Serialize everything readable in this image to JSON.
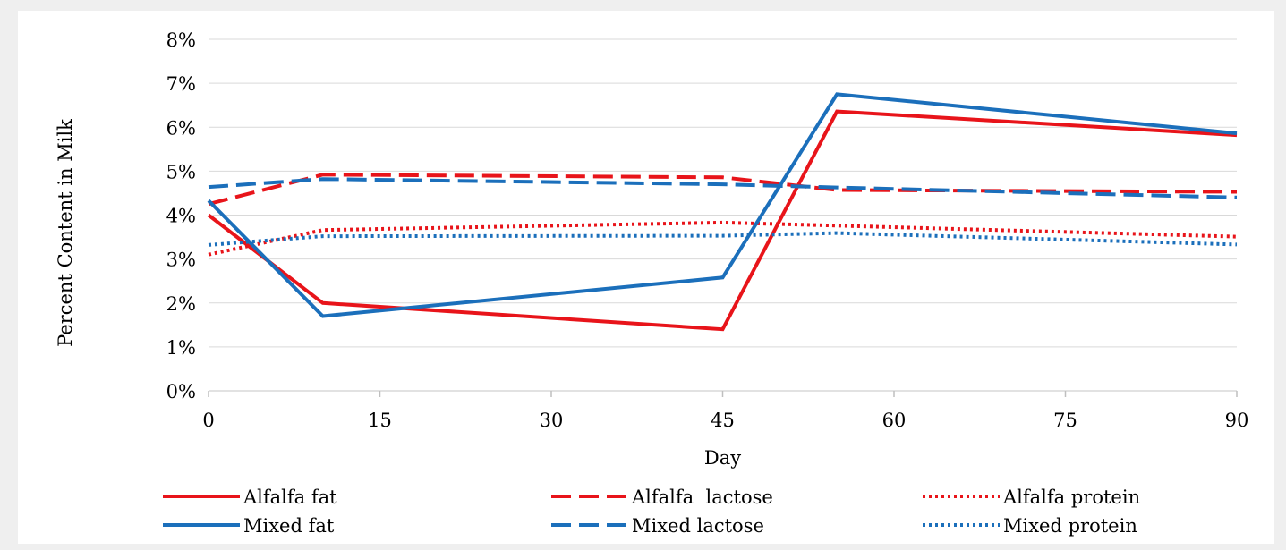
{
  "chart_data": {
    "type": "line",
    "xlabel": "Day",
    "ylabel": "Percent Content in Milk",
    "xlim": [
      0,
      90
    ],
    "ylim": [
      0,
      8
    ],
    "x_ticks": [
      "0",
      "15",
      "30",
      "45",
      "60",
      "75",
      "90"
    ],
    "y_ticks": [
      "0%",
      "1%",
      "2%",
      "3%",
      "4%",
      "5%",
      "6%",
      "7%",
      "8%"
    ],
    "grid": "horizontal",
    "legend_position": "bottom",
    "series": [
      {
        "name": "Alfalfa fat",
        "color": "#e8141a",
        "style": "solid",
        "x": [
          0,
          10,
          45,
          55,
          90
        ],
        "y": [
          4.0,
          2.0,
          1.4,
          6.36,
          5.82
        ]
      },
      {
        "name": "Alfalfa  lactose",
        "color": "#e8141a",
        "style": "dashed",
        "x": [
          0,
          10,
          45,
          55,
          90
        ],
        "y": [
          4.25,
          4.92,
          4.86,
          4.57,
          4.53
        ]
      },
      {
        "name": "Alfalfa protein",
        "color": "#e8141a",
        "style": "dotted",
        "x": [
          0,
          10,
          45,
          55,
          90
        ],
        "y": [
          3.1,
          3.66,
          3.83,
          3.76,
          3.51
        ]
      },
      {
        "name": "Mixed fat",
        "color": "#1b6fbb",
        "style": "solid",
        "x": [
          0,
          10,
          45,
          55,
          90
        ],
        "y": [
          4.33,
          1.7,
          2.58,
          6.75,
          5.86
        ]
      },
      {
        "name": "Mixed lactose",
        "color": "#1b6fbb",
        "style": "dashed",
        "x": [
          0,
          10,
          45,
          55,
          90
        ],
        "y": [
          4.64,
          4.82,
          4.7,
          4.63,
          4.4
        ]
      },
      {
        "name": "Mixed protein",
        "color": "#1b6fbb",
        "style": "dotted",
        "x": [
          0,
          10,
          45,
          55,
          90
        ],
        "y": [
          3.32,
          3.52,
          3.53,
          3.59,
          3.33
        ]
      }
    ]
  }
}
